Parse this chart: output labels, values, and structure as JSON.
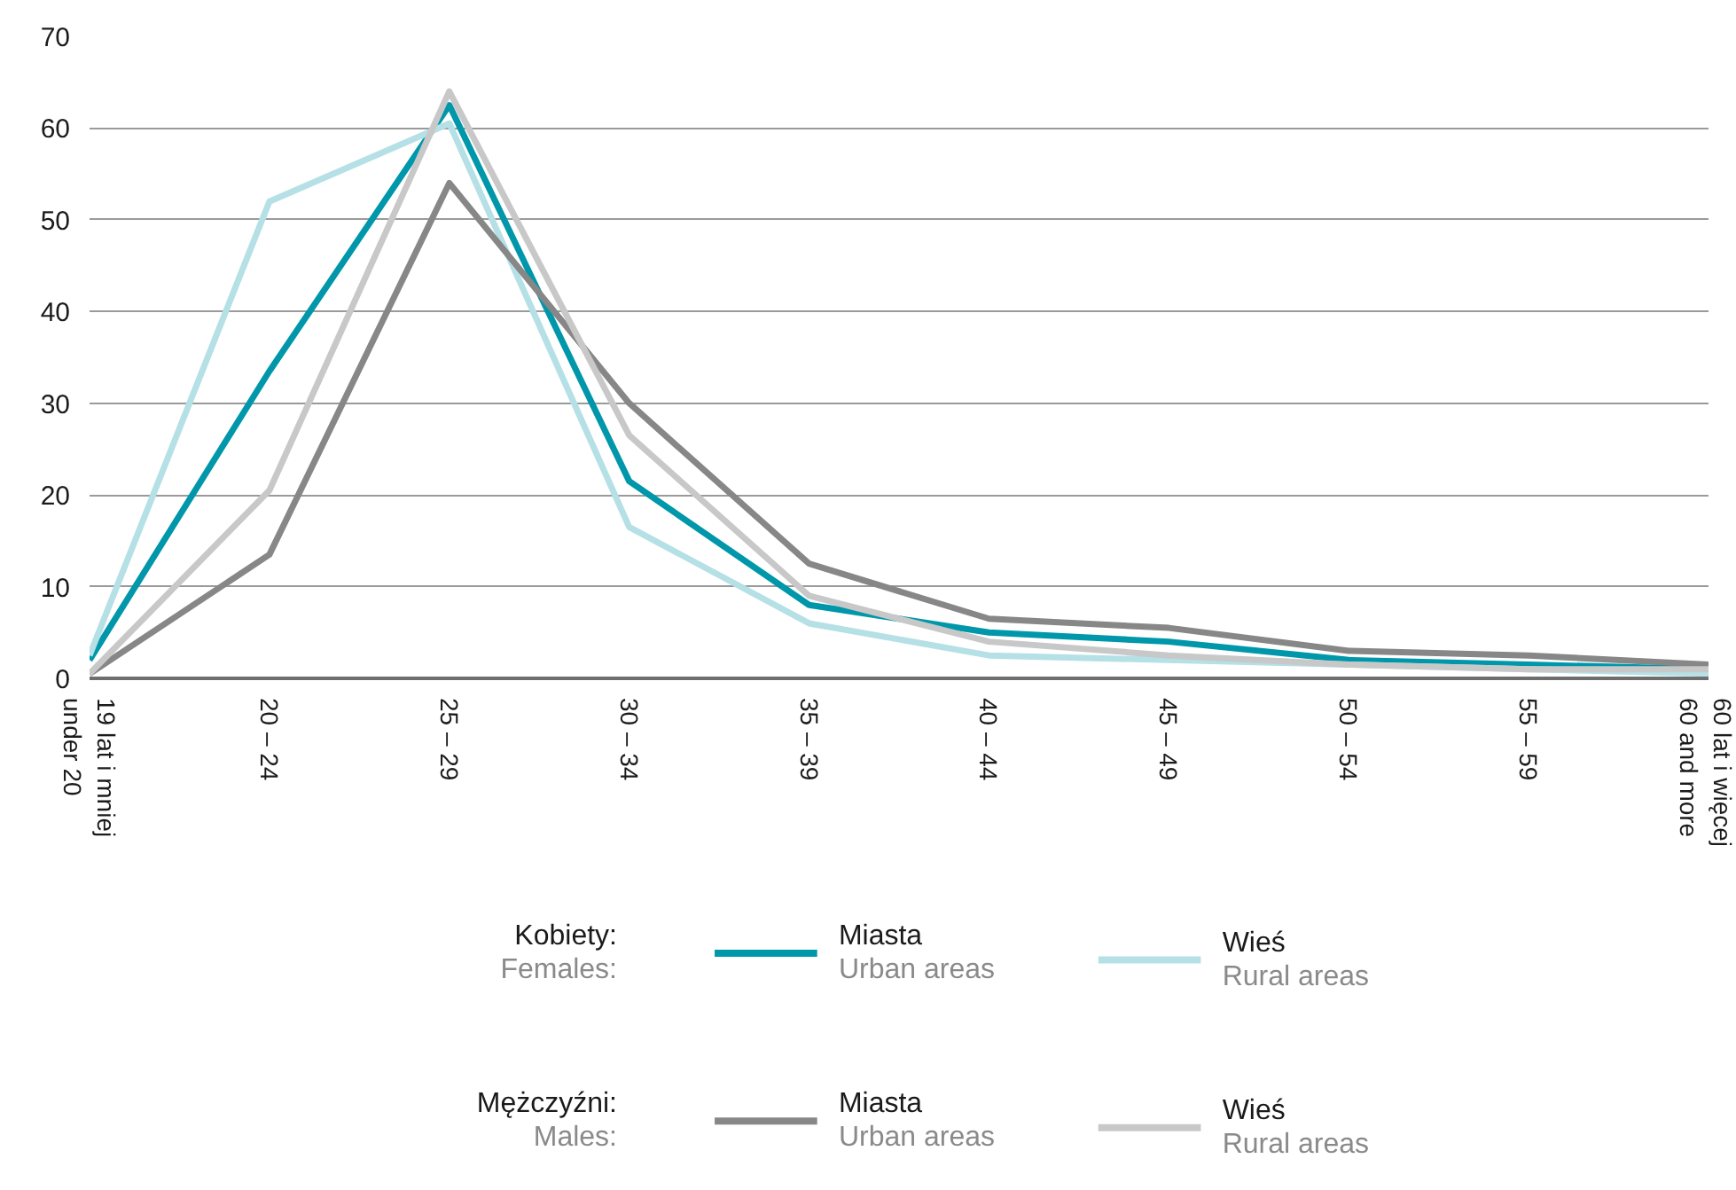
{
  "chart_data": {
    "type": "line",
    "categories": [
      "19 lat i mniej\nunder 20",
      "20 – 24",
      "25 – 29",
      "30 – 34",
      "35 – 39",
      "40 – 44",
      "45 – 49",
      "50 – 54",
      "55 – 59",
      "60 lat i więcej\n60 and more"
    ],
    "ylim": [
      0,
      70
    ],
    "yticks": [
      0,
      10,
      20,
      30,
      40,
      50,
      60,
      70
    ],
    "grid": "y",
    "legend": "bottom",
    "marker": "none",
    "line_style": "solid",
    "annotations": [
      "Kobiety:\nFemales:",
      "Mężczyźni:\nMales:"
    ],
    "series": [
      {
        "name": "Miasta\nUrban areas",
        "color": "#0097aa",
        "values": [
          2,
          33.5,
          62.5,
          21.5,
          8,
          5,
          4,
          2,
          1.5,
          1
        ]
      },
      {
        "name": "Wieś\nRural areas",
        "color": "#b5e0e6",
        "values": [
          2.5,
          52,
          60.5,
          16.5,
          6,
          2.5,
          2,
          1.5,
          1,
          0.5
        ]
      },
      {
        "name": "Miasta\nUrban areas",
        "color": "#878787",
        "values": [
          0.5,
          13.5,
          54,
          30,
          12.5,
          6.5,
          5.5,
          3,
          2.5,
          1.5
        ]
      },
      {
        "name": "Wieś\nRural areas",
        "color": "#c8c8c8",
        "values": [
          0.5,
          20.5,
          64,
          26.5,
          9,
          4,
          2.5,
          1.5,
          1,
          1
        ]
      }
    ]
  }
}
